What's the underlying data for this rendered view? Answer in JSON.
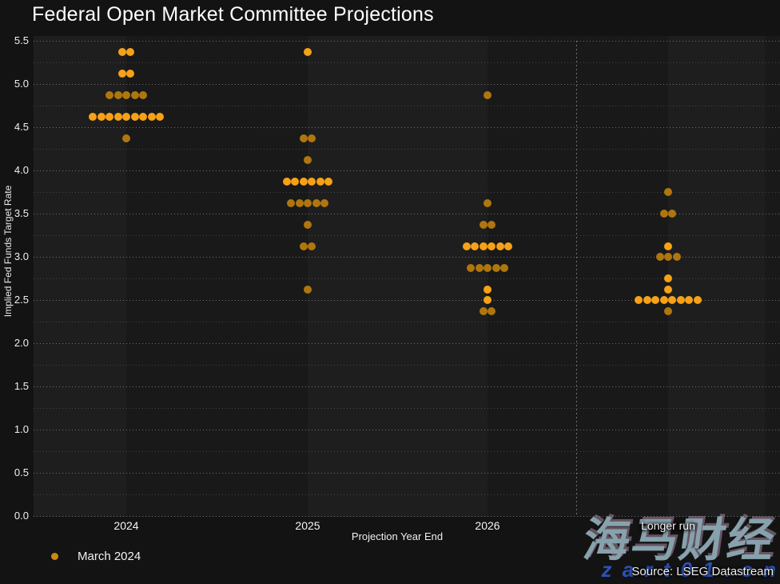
{
  "title": "Federal Open Market Committee Projections",
  "legend": {
    "label": "March 2024"
  },
  "source": "Source: LSEG Datastream",
  "watermark": {
    "main": "海马财经",
    "sub": "z a r t 0 1 . c n"
  },
  "colors": {
    "page_bg": "#131313",
    "band_light": "#1e1e1e",
    "band_dark": "#191919",
    "dot_bright": "#f7a117",
    "dot_dark": "#b0760e",
    "legend_dot": "#c98a12",
    "watermark_main": "#87a2ad",
    "watermark_sub": "#2a52b8",
    "text": "#f2f2f2"
  },
  "chart_data": {
    "type": "scatter",
    "title": "Federal Open Market Committee Projections",
    "xlabel": "Projection Year End",
    "ylabel": "Implied Fed Funds Target Rate",
    "ylim": [
      0.0,
      5.5
    ],
    "ytick_step": 0.5,
    "grid_step": 0.25,
    "grid": "dotted",
    "legend_position": "bottom-left",
    "categories": [
      "2024",
      "2025",
      "2026",
      "Longer run"
    ],
    "series": [
      {
        "name": "March 2024",
        "columns": [
          {
            "category": "2024",
            "dots": [
              {
                "rate": 5.375,
                "count": 2,
                "tone": "bright"
              },
              {
                "rate": 5.125,
                "count": 2,
                "tone": "bright"
              },
              {
                "rate": 4.875,
                "count": 5,
                "tone": "dark"
              },
              {
                "rate": 4.625,
                "count": 9,
                "tone": "bright"
              },
              {
                "rate": 4.375,
                "count": 1,
                "tone": "dark"
              }
            ]
          },
          {
            "category": "2025",
            "dots": [
              {
                "rate": 5.375,
                "count": 1,
                "tone": "bright"
              },
              {
                "rate": 4.375,
                "count": 2,
                "tone": "dark"
              },
              {
                "rate": 4.125,
                "count": 1,
                "tone": "dark"
              },
              {
                "rate": 3.875,
                "count": 6,
                "tone": "bright"
              },
              {
                "rate": 3.625,
                "count": 5,
                "tone": "dark"
              },
              {
                "rate": 3.375,
                "count": 1,
                "tone": "dark"
              },
              {
                "rate": 3.125,
                "count": 2,
                "tone": "dark"
              },
              {
                "rate": 2.625,
                "count": 1,
                "tone": "dark"
              }
            ]
          },
          {
            "category": "2026",
            "dots": [
              {
                "rate": 4.875,
                "count": 1,
                "tone": "dark"
              },
              {
                "rate": 3.625,
                "count": 1,
                "tone": "dark"
              },
              {
                "rate": 3.375,
                "count": 2,
                "tone": "dark"
              },
              {
                "rate": 3.125,
                "count": 6,
                "tone": "bright"
              },
              {
                "rate": 2.875,
                "count": 5,
                "tone": "dark"
              },
              {
                "rate": 2.625,
                "count": 1,
                "tone": "bright"
              },
              {
                "rate": 2.5,
                "count": 1,
                "tone": "bright"
              },
              {
                "rate": 2.375,
                "count": 2,
                "tone": "dark"
              }
            ]
          },
          {
            "category": "Longer run",
            "dots": [
              {
                "rate": 3.75,
                "count": 1,
                "tone": "dark"
              },
              {
                "rate": 3.5,
                "count": 2,
                "tone": "dark"
              },
              {
                "rate": 3.125,
                "count": 1,
                "tone": "bright"
              },
              {
                "rate": 3.0,
                "count": 3,
                "tone": "dark"
              },
              {
                "rate": 2.75,
                "count": 1,
                "tone": "bright"
              },
              {
                "rate": 2.625,
                "count": 1,
                "tone": "bright"
              },
              {
                "rate": 2.5,
                "count": 8,
                "tone": "bright"
              },
              {
                "rate": 2.375,
                "count": 1,
                "tone": "dark"
              }
            ]
          }
        ]
      }
    ]
  }
}
